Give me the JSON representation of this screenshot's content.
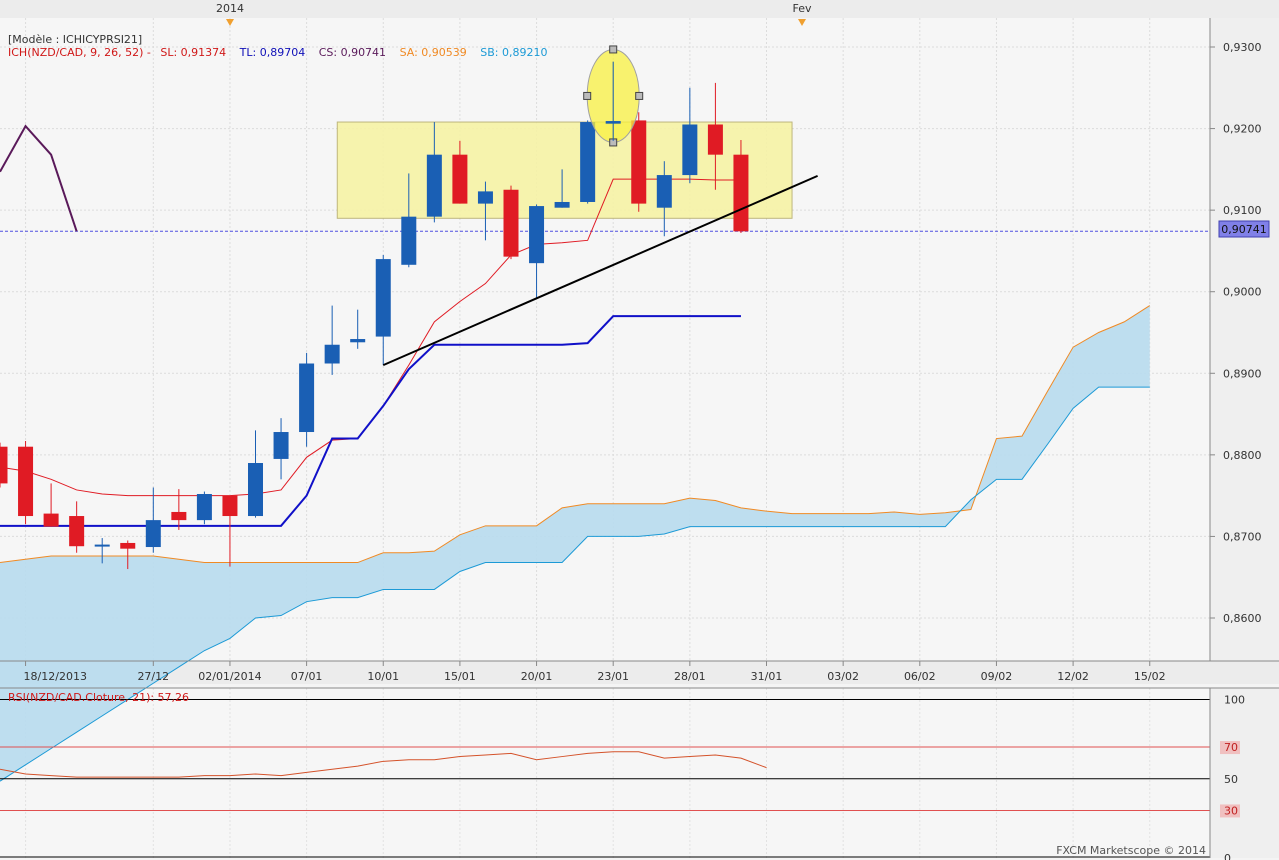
{
  "header": {
    "model": "[Modèle : ICHICYPRSI21]",
    "ich_label": "ICH(NZD/CAD, 9, 26, 52) -",
    "sl": "SL: 0,91374",
    "tl": "TL: 0,89704",
    "cs": "CS: 0,90741",
    "sa": "SA: 0,90539",
    "sb": "SB: 0,89210"
  },
  "colors": {
    "bull": "#1a5fb4",
    "bear": "#e01b24",
    "tenkan": "#e01b24",
    "kijun": "#1010c8",
    "chikou": "#5a1a5a",
    "senkou_a": "#f08a24",
    "senkou_b": "#1c9ad6",
    "cloud": "#b8dcee",
    "rsi": "#d4522a",
    "highlight": "#f6f3a6"
  },
  "top_markers": [
    "2014",
    "Fev"
  ],
  "last_price_label": "0,90741",
  "copyright": "FXCM Marketscope © 2014",
  "chart_data": [
    {
      "type": "candlestick",
      "title": "",
      "ylim": [
        0.855,
        0.932
      ],
      "y_ticks": [
        "0,8600",
        "0,8700",
        "0,8800",
        "0,8900",
        "0,9000",
        "0,9100",
        "0,9200",
        "0,9300"
      ],
      "y_tick_values": [
        0.86,
        0.87,
        0.88,
        0.89,
        0.9,
        0.91,
        0.92,
        0.93
      ],
      "x_tick_labels": [
        "18/12/2013",
        "27/12",
        "02/01/2014",
        "07/01",
        "10/01",
        "15/01",
        "20/01",
        "23/01",
        "28/01",
        "31/01",
        "03/02",
        "06/02",
        "09/02",
        "12/02",
        "15/02"
      ],
      "x_tick_index": [
        1,
        6,
        9,
        12,
        15,
        18,
        21,
        24,
        27,
        30,
        33,
        36,
        39,
        42,
        45
      ],
      "grid": true,
      "candles": [
        {
          "o": 0.881,
          "h": 0.8815,
          "l": 0.876,
          "c": 0.8765
        },
        {
          "o": 0.881,
          "h": 0.8817,
          "l": 0.8715,
          "c": 0.8725
        },
        {
          "o": 0.8728,
          "h": 0.8765,
          "l": 0.8712,
          "c": 0.8712
        },
        {
          "o": 0.8725,
          "h": 0.8743,
          "l": 0.868,
          "c": 0.8688
        },
        {
          "o": 0.869,
          "h": 0.8698,
          "l": 0.8667,
          "c": 0.869
        },
        {
          "o": 0.8692,
          "h": 0.8695,
          "l": 0.866,
          "c": 0.8685
        },
        {
          "o": 0.8687,
          "h": 0.876,
          "l": 0.868,
          "c": 0.872
        },
        {
          "o": 0.873,
          "h": 0.8758,
          "l": 0.8708,
          "c": 0.872
        },
        {
          "o": 0.872,
          "h": 0.8755,
          "l": 0.8715,
          "c": 0.8752
        },
        {
          "o": 0.875,
          "h": 0.875,
          "l": 0.8663,
          "c": 0.8725
        },
        {
          "o": 0.8725,
          "h": 0.883,
          "l": 0.8723,
          "c": 0.879
        },
        {
          "o": 0.8795,
          "h": 0.8845,
          "l": 0.877,
          "c": 0.8828
        },
        {
          "o": 0.8828,
          "h": 0.8925,
          "l": 0.881,
          "c": 0.8912
        },
        {
          "o": 0.8912,
          "h": 0.8983,
          "l": 0.8898,
          "c": 0.8935
        },
        {
          "o": 0.8938,
          "h": 0.8978,
          "l": 0.893,
          "c": 0.8942
        },
        {
          "o": 0.8945,
          "h": 0.9045,
          "l": 0.891,
          "c": 0.904
        },
        {
          "o": 0.9033,
          "h": 0.9145,
          "l": 0.903,
          "c": 0.9092
        },
        {
          "o": 0.9092,
          "h": 0.9208,
          "l": 0.9085,
          "c": 0.9168
        },
        {
          "o": 0.9168,
          "h": 0.9185,
          "l": 0.9108,
          "c": 0.9108
        },
        {
          "o": 0.9108,
          "h": 0.9135,
          "l": 0.9063,
          "c": 0.9123
        },
        {
          "o": 0.9125,
          "h": 0.913,
          "l": 0.904,
          "c": 0.9043
        },
        {
          "o": 0.9035,
          "h": 0.9107,
          "l": 0.8993,
          "c": 0.9105
        },
        {
          "o": 0.9103,
          "h": 0.915,
          "l": 0.9103,
          "c": 0.911
        },
        {
          "o": 0.911,
          "h": 0.921,
          "l": 0.9108,
          "c": 0.9208
        },
        {
          "o": 0.9208,
          "h": 0.9282,
          "l": 0.9185,
          "c": 0.9208
        },
        {
          "o": 0.921,
          "h": 0.922,
          "l": 0.9098,
          "c": 0.9108
        },
        {
          "o": 0.9103,
          "h": 0.916,
          "l": 0.9068,
          "c": 0.9143
        },
        {
          "o": 0.9143,
          "h": 0.925,
          "l": 0.9133,
          "c": 0.9205
        },
        {
          "o": 0.9205,
          "h": 0.9256,
          "l": 0.9125,
          "c": 0.9168
        },
        {
          "o": 0.9168,
          "h": 0.9186,
          "l": 0.9072,
          "c": 0.9074
        }
      ],
      "tenkan": [
        0.8785,
        0.878,
        0.877,
        0.8757,
        0.8752,
        0.875,
        0.875,
        0.875,
        0.875,
        0.875,
        0.8752,
        0.8757,
        0.8797,
        0.8818,
        0.882,
        0.886,
        0.891,
        0.8963,
        0.8988,
        0.901,
        0.9045,
        0.9058,
        0.906,
        0.9063,
        0.9138,
        0.9138,
        0.9138,
        0.9138,
        0.9137,
        0.9137
      ],
      "kijun": [
        0.8713,
        0.8713,
        0.8713,
        0.8713,
        0.8713,
        0.8713,
        0.8713,
        0.8713,
        0.8713,
        0.8713,
        0.8713,
        0.8713,
        0.875,
        0.882,
        0.882,
        0.886,
        0.8905,
        0.8935,
        0.8935,
        0.8935,
        0.8935,
        0.8935,
        0.8935,
        0.8937,
        0.897,
        0.897,
        0.897,
        0.897,
        0.897,
        0.897
      ],
      "chikou_x_index": [
        0,
        1,
        2,
        3
      ],
      "chikou": [
        0.9147,
        0.9203,
        0.9168,
        0.9074
      ],
      "senkou_a": [
        0.8668,
        0.8672,
        0.8676,
        0.8676,
        0.8676,
        0.8676,
        0.8676,
        0.8672,
        0.8668,
        0.8668,
        0.8668,
        0.8668,
        0.8668,
        0.8668,
        0.8668,
        0.868,
        0.868,
        0.8682,
        0.8702,
        0.8713,
        0.8713,
        0.8713,
        0.8735,
        0.874,
        0.874,
        0.874,
        0.874,
        0.8747,
        0.8744,
        0.8735,
        0.8731,
        0.8728,
        0.8728,
        0.8728,
        0.8728,
        0.873,
        0.8727,
        0.8729,
        0.8733,
        0.882,
        0.8823,
        0.8878,
        0.8932,
        0.895,
        0.8963,
        0.8983
      ],
      "senkou_b": [
        0.84,
        0.842,
        0.844,
        0.846,
        0.848,
        0.85,
        0.852,
        0.854,
        0.856,
        0.8575,
        0.86,
        0.8603,
        0.862,
        0.8625,
        0.8625,
        0.8635,
        0.8635,
        0.8635,
        0.8657,
        0.8668,
        0.8668,
        0.8668,
        0.8668,
        0.87,
        0.87,
        0.87,
        0.8703,
        0.8712,
        0.8712,
        0.8712,
        0.8712,
        0.8712,
        0.8712,
        0.8712,
        0.8712,
        0.8712,
        0.8712,
        0.8712,
        0.8745,
        0.877,
        0.877,
        0.8813,
        0.8857,
        0.8883,
        0.8883,
        0.8883
      ],
      "trendline": {
        "from": {
          "index": 15,
          "value": 0.891
        },
        "to": {
          "index": 32,
          "value": 0.9142
        }
      },
      "highlight_box": {
        "from_index": 13.2,
        "to_index": 31.0,
        "top": 0.9208,
        "bottom": 0.909
      },
      "highlight_ellipse": {
        "index": 24,
        "top": 0.9297,
        "bottom": 0.9183
      },
      "last_price": 0.90741
    },
    {
      "type": "line",
      "title": "RSI(NZD/CAD.Cloture, 21): 57,26",
      "ylim": [
        0,
        100
      ],
      "y_ticks": [
        "0",
        "30",
        "50",
        "70",
        "100"
      ],
      "y_tick_values": [
        0,
        30,
        50,
        70,
        100
      ],
      "levels": [
        30,
        70
      ],
      "series": [
        {
          "values": [
            56,
            53,
            52,
            51,
            51,
            51,
            51,
            51,
            52,
            52,
            53,
            52,
            54,
            56,
            58,
            61,
            62,
            62,
            64,
            65,
            66,
            62,
            64,
            66,
            67,
            67,
            63,
            64,
            65,
            63,
            57
          ]
        }
      ]
    }
  ]
}
